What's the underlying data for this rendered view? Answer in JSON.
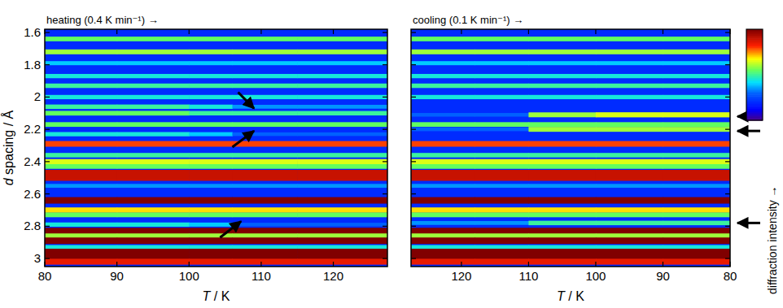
{
  "chart_data": [
    {
      "type": "heatmap",
      "title": "heating (0.4 K min⁻¹) →",
      "x_label": "T / K",
      "y_label": "d spacing / Å",
      "xlim": [
        80,
        127.5
      ],
      "xticks": [
        80,
        90,
        100,
        110,
        120
      ],
      "ylim": [
        3.05,
        1.58
      ],
      "yticks": [
        1.6,
        1.8,
        2,
        2.2,
        2.4,
        2.6,
        2.8,
        3
      ],
      "tick_labels": true,
      "background_intensity": 0.2,
      "x_edges": [
        80,
        90,
        100,
        106,
        115,
        127.5
      ],
      "y": [
        1.64,
        1.72,
        1.79,
        1.87,
        1.93,
        2.0,
        2.06,
        2.1,
        2.17,
        2.23,
        2.29,
        2.36,
        2.4,
        2.43,
        2.47,
        2.5,
        2.55,
        2.64,
        2.7,
        2.73,
        2.79,
        2.83,
        2.86,
        2.89,
        2.93,
        2.96,
        2.99,
        3.02
      ],
      "cells": [
        [
          0.55,
          0.55,
          0.55,
          0.55,
          0.55
        ],
        [
          0.6,
          0.6,
          0.6,
          0.6,
          0.6
        ],
        [
          0.4,
          0.4,
          0.4,
          0.4,
          0.4
        ],
        [
          0.45,
          0.45,
          0.45,
          0.45,
          0.45
        ],
        [
          0.5,
          0.5,
          0.5,
          0.5,
          0.5
        ],
        [
          0.45,
          0.45,
          0.45,
          0.45,
          0.45
        ],
        [
          0.5,
          0.5,
          0.45,
          0.35,
          0.35
        ],
        [
          0.55,
          0.55,
          0.5,
          0.5,
          0.5
        ],
        [
          0.55,
          0.55,
          0.55,
          0.55,
          0.55
        ],
        [
          0.45,
          0.45,
          0.4,
          0.3,
          0.3
        ],
        [
          0.8,
          0.8,
          0.8,
          0.8,
          0.8
        ],
        [
          0.5,
          0.5,
          0.5,
          0.5,
          0.5
        ],
        [
          0.65,
          0.65,
          0.65,
          0.65,
          0.65
        ],
        [
          0.55,
          0.55,
          0.55,
          0.55,
          0.55
        ],
        [
          0.9,
          0.9,
          0.9,
          0.9,
          0.9
        ],
        [
          0.9,
          0.9,
          0.9,
          0.9,
          0.9
        ],
        [
          0.35,
          0.35,
          0.35,
          0.35,
          0.35
        ],
        [
          1,
          1,
          1,
          1,
          1
        ],
        [
          0.7,
          0.7,
          0.7,
          0.7,
          0.7
        ],
        [
          0.55,
          0.55,
          0.55,
          0.55,
          0.55
        ],
        [
          0.45,
          0.45,
          0.4,
          0.3,
          0.3
        ],
        [
          1,
          1,
          1,
          1,
          1
        ],
        [
          0.6,
          0.6,
          0.6,
          0.6,
          0.6
        ],
        [
          1,
          1,
          1,
          1,
          1
        ],
        [
          0.45,
          0.45,
          0.45,
          0.45,
          0.45
        ],
        [
          1,
          1,
          1,
          1,
          1
        ],
        [
          1,
          1,
          1,
          1,
          1
        ],
        [
          0.85,
          0.85,
          0.85,
          0.85,
          0.85
        ]
      ],
      "arrows": [
        {
          "from": [
            106.8,
            1.97
          ],
          "to": [
            109,
            2.07
          ]
        },
        {
          "from": [
            106,
            2.31
          ],
          "to": [
            109,
            2.21
          ]
        },
        {
          "from": [
            104.3,
            2.87
          ],
          "to": [
            107.2,
            2.77
          ]
        }
      ]
    },
    {
      "type": "heatmap",
      "title": "cooling (0.1 K min⁻¹) →",
      "x_label": "T / K",
      "xlim": [
        127.5,
        80
      ],
      "xticks": [
        120,
        110,
        100,
        90,
        80
      ],
      "ylim": [
        3.05,
        1.58
      ],
      "yticks": [
        1.6,
        1.8,
        2,
        2.2,
        2.4,
        2.6,
        2.8,
        3
      ],
      "tick_labels": "x",
      "background_intensity": 0.2,
      "x_edges": [
        127.5,
        118,
        110,
        100,
        90,
        80
      ],
      "y": [
        1.64,
        1.72,
        1.79,
        1.87,
        1.93,
        2.0,
        2.11,
        2.17,
        2.2,
        2.29,
        2.36,
        2.4,
        2.43,
        2.47,
        2.5,
        2.55,
        2.64,
        2.7,
        2.73,
        2.78,
        2.83,
        2.86,
        2.89,
        2.93,
        2.96,
        2.99,
        3.02
      ],
      "cells": [
        [
          0.55,
          0.55,
          0.55,
          0.55,
          0.55
        ],
        [
          0.6,
          0.6,
          0.6,
          0.6,
          0.6
        ],
        [
          0.4,
          0.4,
          0.4,
          0.4,
          0.4
        ],
        [
          0.45,
          0.45,
          0.45,
          0.45,
          0.45
        ],
        [
          0.5,
          0.5,
          0.5,
          0.5,
          0.5
        ],
        [
          0.45,
          0.45,
          0.45,
          0.45,
          0.45
        ],
        [
          0.3,
          0.3,
          0.6,
          0.65,
          0.65
        ],
        [
          0.55,
          0.55,
          0.55,
          0.55,
          0.55
        ],
        [
          0.3,
          0.3,
          0.6,
          0.6,
          0.6
        ],
        [
          0.8,
          0.8,
          0.8,
          0.8,
          0.8
        ],
        [
          0.5,
          0.5,
          0.5,
          0.5,
          0.5
        ],
        [
          0.65,
          0.65,
          0.65,
          0.65,
          0.65
        ],
        [
          0.55,
          0.55,
          0.55,
          0.55,
          0.55
        ],
        [
          0.9,
          0.9,
          0.9,
          0.9,
          0.9
        ],
        [
          0.9,
          0.9,
          0.9,
          0.9,
          0.9
        ],
        [
          0.35,
          0.35,
          0.35,
          0.35,
          0.35
        ],
        [
          1,
          1,
          1,
          1,
          1
        ],
        [
          0.7,
          0.7,
          0.7,
          0.7,
          0.7
        ],
        [
          0.55,
          0.55,
          0.55,
          0.55,
          0.55
        ],
        [
          0.35,
          0.35,
          0.5,
          0.5,
          0.5
        ],
        [
          1,
          1,
          1,
          1,
          1
        ],
        [
          0.6,
          0.6,
          0.6,
          0.6,
          0.6
        ],
        [
          1,
          1,
          1,
          1,
          1
        ],
        [
          0.45,
          0.45,
          0.45,
          0.45,
          0.45
        ],
        [
          1,
          1,
          1,
          1,
          1
        ],
        [
          1,
          1,
          1,
          1,
          1
        ],
        [
          0.85,
          0.85,
          0.85,
          0.85,
          0.85
        ]
      ],
      "arrows": [
        {
          "y": 2.12
        },
        {
          "y": 2.21
        },
        {
          "y": 2.78
        }
      ],
      "colorbar": {
        "range": [
          0,
          1
        ],
        "label": "diffraction intensity →"
      }
    }
  ]
}
